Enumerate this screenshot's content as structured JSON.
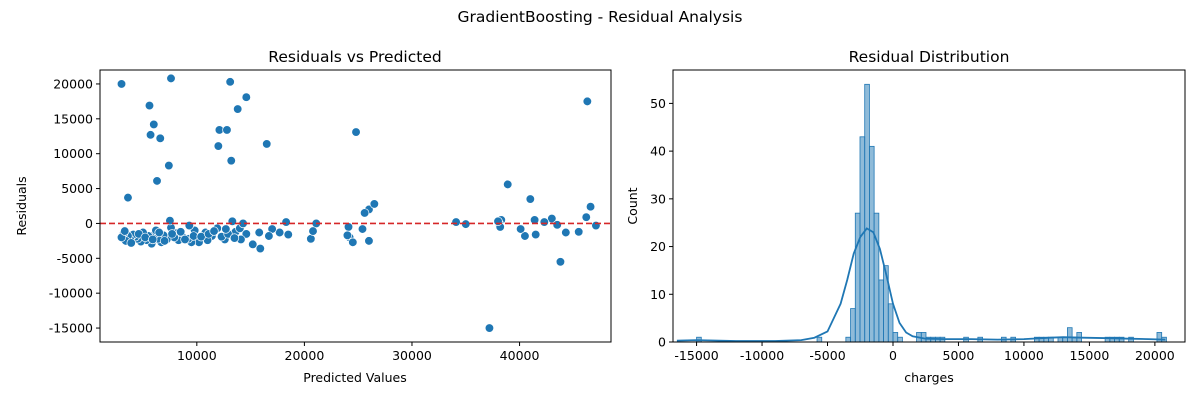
{
  "figure": {
    "suptitle": "GradientBoosting - Residual Analysis"
  },
  "colors": {
    "point": "#1f77b4",
    "bar_fill": "#1f77b4",
    "bar_stroke": "#1f77b4",
    "zero_line": "#d62728",
    "kde": "#1f77b4"
  },
  "chart_data": [
    {
      "type": "scatter",
      "title": "Residuals vs Predicted",
      "xlabel": "Predicted Values",
      "ylabel": "Residuals",
      "xlim": [
        1000,
        48500
      ],
      "ylim": [
        -17000,
        22000
      ],
      "xticks": [
        10000,
        20000,
        30000,
        40000
      ],
      "yticks": [
        -15000,
        -10000,
        -5000,
        0,
        5000,
        10000,
        15000,
        20000
      ],
      "reference_line": {
        "y": 0,
        "style": "dashed"
      },
      "points": [
        [
          3000,
          20000
        ],
        [
          3600,
          3700
        ],
        [
          5600,
          16900
        ],
        [
          5700,
          12700
        ],
        [
          6000,
          14200
        ],
        [
          6300,
          6100
        ],
        [
          6600,
          12200
        ],
        [
          7400,
          8300
        ],
        [
          7600,
          20800
        ],
        [
          12000,
          11100
        ],
        [
          12100,
          13400
        ],
        [
          12800,
          13400
        ],
        [
          13100,
          20300
        ],
        [
          13200,
          9000
        ],
        [
          13800,
          16400
        ],
        [
          14600,
          18100
        ],
        [
          16500,
          11400
        ],
        [
          24800,
          13100
        ],
        [
          26000,
          2000
        ],
        [
          26500,
          2800
        ],
        [
          25600,
          1500
        ],
        [
          38900,
          5600
        ],
        [
          41000,
          3500
        ],
        [
          43800,
          -5500
        ],
        [
          37200,
          -15000
        ],
        [
          46300,
          17500
        ],
        [
          46600,
          2400
        ],
        [
          46200,
          900
        ],
        [
          47100,
          -300
        ],
        [
          45500,
          -1200
        ],
        [
          44300,
          -1300
        ],
        [
          43000,
          700
        ],
        [
          43500,
          -200
        ],
        [
          42300,
          200
        ],
        [
          41500,
          -1600
        ],
        [
          41400,
          500
        ],
        [
          40500,
          -1800
        ],
        [
          40100,
          -800
        ],
        [
          38300,
          500
        ],
        [
          38100,
          0
        ],
        [
          38200,
          -500
        ],
        [
          38000,
          300
        ],
        [
          35000,
          -100
        ],
        [
          34100,
          200
        ],
        [
          24100,
          -500
        ],
        [
          24200,
          -2000
        ],
        [
          24500,
          -2700
        ],
        [
          24000,
          -1700
        ],
        [
          25400,
          -800
        ],
        [
          26000,
          -2500
        ],
        [
          20600,
          -2200
        ],
        [
          21100,
          0
        ],
        [
          20800,
          -1100
        ],
        [
          18300,
          200
        ],
        [
          18500,
          -1600
        ],
        [
          17700,
          -1300
        ],
        [
          17000,
          -800
        ],
        [
          16700,
          -1800
        ],
        [
          15900,
          -3600
        ],
        [
          15200,
          -3000
        ],
        [
          15800,
          -1300
        ],
        [
          14600,
          -1500
        ],
        [
          14100,
          -2300
        ],
        [
          13600,
          -1200
        ],
        [
          13300,
          300
        ],
        [
          12600,
          -2300
        ],
        [
          11900,
          -700
        ],
        [
          11400,
          -1800
        ],
        [
          11000,
          -2400
        ],
        [
          10800,
          -1300
        ],
        [
          10200,
          -2700
        ],
        [
          9800,
          -1000
        ],
        [
          9500,
          -2700
        ],
        [
          9200,
          -2200
        ],
        [
          9300,
          -300
        ],
        [
          8700,
          -2000
        ],
        [
          8300,
          -2400
        ],
        [
          8100,
          -1400
        ],
        [
          7900,
          -2000
        ],
        [
          7600,
          -600
        ],
        [
          7500,
          400
        ],
        [
          7200,
          -2300
        ],
        [
          6900,
          -1700
        ],
        [
          6700,
          -2700
        ],
        [
          6400,
          -2200
        ],
        [
          6100,
          -1500
        ],
        [
          5800,
          -2900
        ],
        [
          5500,
          -1800
        ],
        [
          5300,
          -2400
        ],
        [
          5000,
          -1300
        ],
        [
          4800,
          -2600
        ],
        [
          4500,
          -2200
        ],
        [
          4300,
          -1900
        ],
        [
          4100,
          -1600
        ],
        [
          3800,
          -2300
        ],
        [
          3600,
          -1800
        ],
        [
          3400,
          -2500
        ],
        [
          3200,
          -1400
        ],
        [
          3000,
          -2000
        ],
        [
          3300,
          -1100
        ],
        [
          3900,
          -2800
        ],
        [
          4600,
          -1500
        ],
        [
          5200,
          -2000
        ],
        [
          5900,
          -2300
        ],
        [
          6200,
          -1000
        ],
        [
          7000,
          -2500
        ],
        [
          8500,
          -1200
        ],
        [
          9700,
          -1800
        ],
        [
          10400,
          -1900
        ],
        [
          11100,
          -1500
        ],
        [
          12300,
          -1900
        ],
        [
          12900,
          -1500
        ],
        [
          13500,
          -2100
        ],
        [
          14000,
          -700
        ],
        [
          14300,
          0
        ],
        [
          12700,
          -800
        ],
        [
          11600,
          -1100
        ],
        [
          8900,
          -2300
        ],
        [
          7700,
          -1500
        ],
        [
          6500,
          -1300
        ]
      ]
    },
    {
      "type": "bar",
      "title": "Residual Distribution",
      "xlabel": "charges",
      "ylabel": "Count",
      "xlim": [
        -16800,
        22300
      ],
      "ylim": [
        0,
        57
      ],
      "xticks": [
        -15000,
        -10000,
        -5000,
        0,
        5000,
        10000,
        15000,
        20000
      ],
      "yticks": [
        0,
        10,
        20,
        30,
        40,
        50
      ],
      "bin_width": 360,
      "bins": [
        [
          -15000,
          1
        ],
        [
          -5800,
          1
        ],
        [
          -3600,
          1
        ],
        [
          -3240,
          7
        ],
        [
          -2880,
          27
        ],
        [
          -2520,
          43
        ],
        [
          -2160,
          54
        ],
        [
          -1800,
          41
        ],
        [
          -1440,
          27
        ],
        [
          -1080,
          13
        ],
        [
          -720,
          16
        ],
        [
          -360,
          8
        ],
        [
          0,
          2
        ],
        [
          360,
          1
        ],
        [
          1800,
          2
        ],
        [
          2160,
          2
        ],
        [
          2520,
          1
        ],
        [
          2880,
          1
        ],
        [
          3240,
          1
        ],
        [
          3600,
          1
        ],
        [
          5400,
          1
        ],
        [
          6480,
          1
        ],
        [
          8280,
          1
        ],
        [
          9000,
          1
        ],
        [
          10800,
          1
        ],
        [
          11160,
          1
        ],
        [
          11520,
          1
        ],
        [
          11880,
          1
        ],
        [
          12600,
          1
        ],
        [
          12960,
          1
        ],
        [
          13320,
          3
        ],
        [
          13680,
          1
        ],
        [
          14040,
          2
        ],
        [
          16200,
          1
        ],
        [
          16560,
          1
        ],
        [
          16920,
          1
        ],
        [
          17280,
          1
        ],
        [
          18000,
          1
        ],
        [
          20160,
          2
        ],
        [
          20520,
          1
        ]
      ],
      "kde": [
        [
          -16500,
          0.3
        ],
        [
          -15000,
          0.4
        ],
        [
          -12000,
          0.2
        ],
        [
          -9000,
          0.2
        ],
        [
          -7000,
          0.4
        ],
        [
          -6000,
          0.9
        ],
        [
          -5000,
          2.2
        ],
        [
          -4000,
          8
        ],
        [
          -3500,
          13
        ],
        [
          -3000,
          18.5
        ],
        [
          -2500,
          22
        ],
        [
          -2000,
          23.8
        ],
        [
          -1500,
          23
        ],
        [
          -1000,
          19.5
        ],
        [
          -500,
          14
        ],
        [
          0,
          8
        ],
        [
          500,
          4
        ],
        [
          1000,
          2
        ],
        [
          1500,
          1.2
        ],
        [
          2500,
          0.7
        ],
        [
          4000,
          0.6
        ],
        [
          6000,
          0.6
        ],
        [
          8000,
          0.5
        ],
        [
          10000,
          0.6
        ],
        [
          12000,
          0.9
        ],
        [
          13000,
          1.0
        ],
        [
          14500,
          0.9
        ],
        [
          16500,
          0.8
        ],
        [
          18000,
          0.7
        ],
        [
          19500,
          0.6
        ],
        [
          20800,
          0.5
        ]
      ]
    }
  ]
}
